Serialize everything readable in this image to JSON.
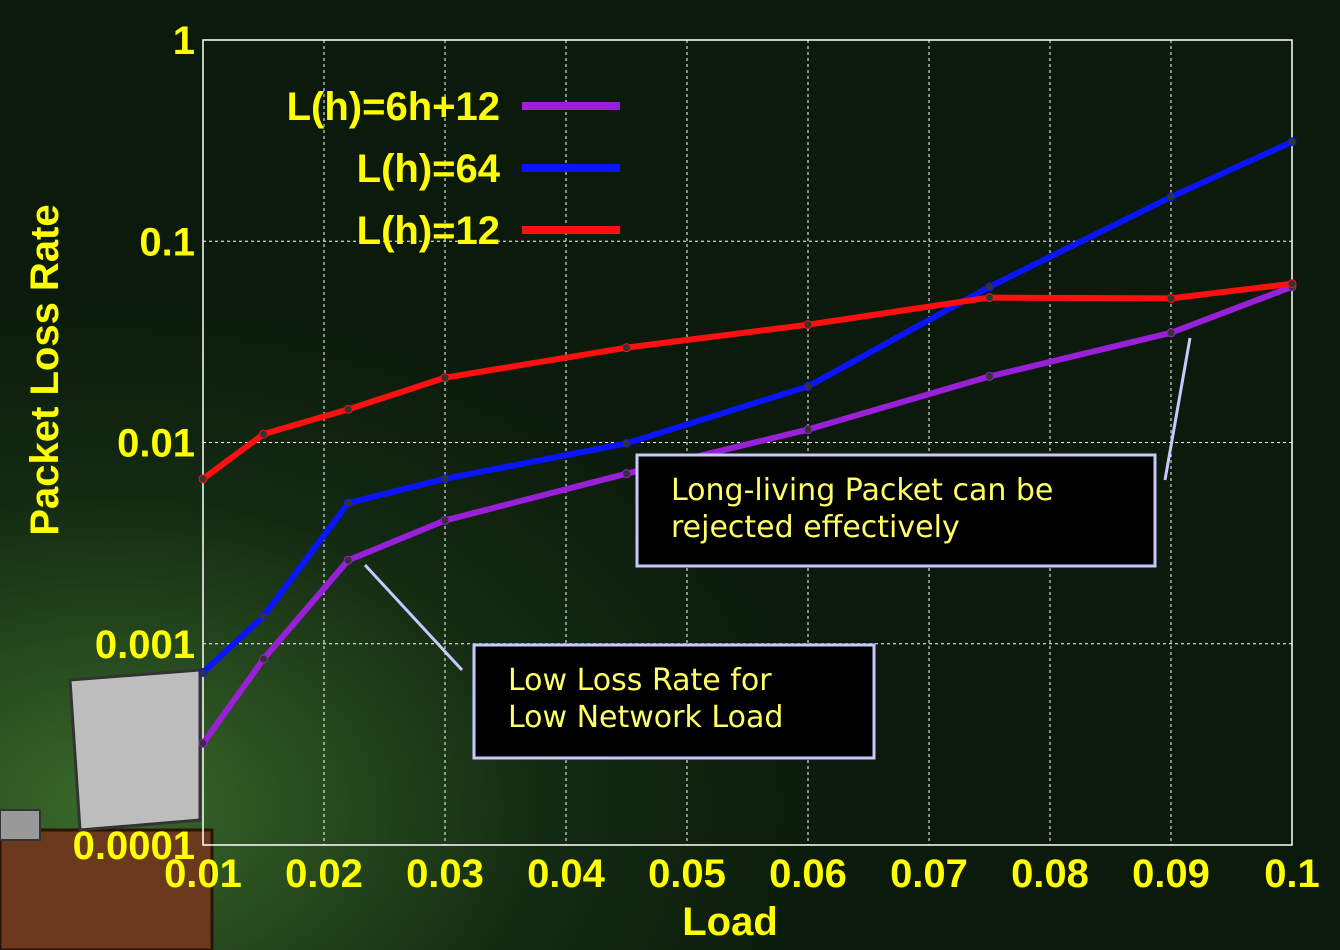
{
  "chart_data": {
    "type": "line",
    "xlabel": "Load",
    "ylabel": "Packet Loss Rate",
    "x": [
      0.01,
      0.015,
      0.022,
      0.03,
      0.045,
      0.06,
      0.075,
      0.09,
      0.1
    ],
    "series": [
      {
        "name": "L(h)=6h+12",
        "color": "#9a1fd8",
        "values": [
          0.00032,
          0.00084,
          0.0026,
          0.0041,
          0.007,
          0.0116,
          0.0213,
          0.0351,
          0.0594
        ]
      },
      {
        "name": "L(h)=64",
        "color": "#0a14ff",
        "values": [
          0.00072,
          0.00137,
          0.005,
          0.0066,
          0.0099,
          0.019,
          0.0594,
          0.166,
          0.312
        ]
      },
      {
        "name": "L(h)=12",
        "color": "#ff1010",
        "values": [
          0.0066,
          0.011,
          0.0146,
          0.021,
          0.0296,
          0.0385,
          0.0525,
          0.052,
          0.0615
        ]
      }
    ],
    "xlim": [
      0.01,
      0.1
    ],
    "xticks": [
      0.01,
      0.02,
      0.03,
      0.04,
      0.05,
      0.06,
      0.07,
      0.08,
      0.09,
      0.1
    ],
    "ylim": [
      0.0001,
      1
    ],
    "yticks": [
      0.0001,
      0.001,
      0.01,
      0.1,
      1
    ],
    "log_y": true,
    "grid": true,
    "legend": "upper left",
    "annotations": [
      {
        "lines": [
          "Long-living Packet can be",
          "rejected effectively"
        ]
      },
      {
        "lines": [
          "Low Loss Rate for",
          "Low Network Load"
        ]
      }
    ]
  }
}
